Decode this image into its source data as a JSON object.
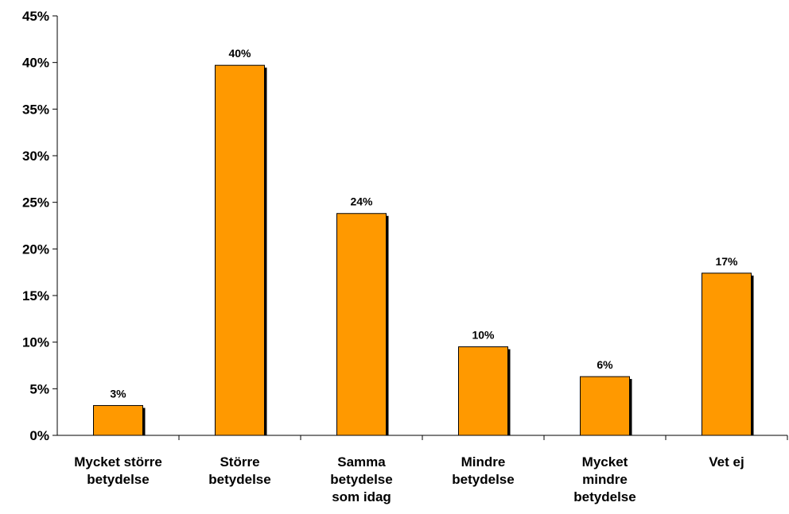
{
  "chart_data": {
    "type": "bar",
    "categories": [
      [
        "Mycket större",
        "betydelse"
      ],
      [
        "Större",
        "betydelse"
      ],
      [
        "Samma",
        "betydelse",
        "som idag"
      ],
      [
        "Mindre",
        "betydelse"
      ],
      [
        "Mycket",
        "mindre",
        "betydelse"
      ],
      [
        "Vet ej"
      ]
    ],
    "values": [
      3.2,
      39.7,
      23.8,
      9.5,
      6.3,
      17.4
    ],
    "data_labels": [
      "3%",
      "40%",
      "24%",
      "10%",
      "6%",
      "17%"
    ],
    "ylim": [
      0,
      45
    ],
    "yticks": [
      0,
      5,
      10,
      15,
      20,
      25,
      30,
      35,
      40,
      45
    ],
    "ytick_labels": [
      "0%",
      "5%",
      "10%",
      "15%",
      "20%",
      "25%",
      "30%",
      "35%",
      "40%",
      "45%"
    ],
    "grid": false,
    "colors": {
      "bar_fill": "#FF9900",
      "bar_stroke": "#000000",
      "bar_shadow": "#000000"
    }
  }
}
